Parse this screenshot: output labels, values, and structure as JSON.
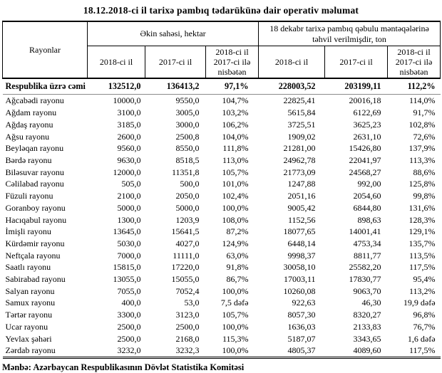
{
  "title": "18.12.2018-ci il tarixə pambıq tədarükünə dair operativ məlumat",
  "footer": "Mənbə: Azərbaycan Respublikasının Dövlət Statistika Komitəsi",
  "table": {
    "headers": {
      "rayonlar": "Rayonlar",
      "group_area": "Əkin sahəsi, hektar",
      "group_delivered": "18 dekabr tarixə pambıq qəbulu məntəqələrinə təhvil verilmişdir, ton",
      "subcols": [
        "2018-ci il",
        "2017-ci il",
        "2018-ci il 2017-ci ilə nisbətən"
      ]
    },
    "total": {
      "label": "Respublika üzrə cəmi",
      "values": [
        "132512,0",
        "136413,2",
        "97,1%",
        "228003,52",
        "203199,11",
        "112,2%"
      ]
    },
    "rows": [
      [
        "Ağcabədi rayonu",
        "10000,0",
        "9550,0",
        "104,7%",
        "22825,41",
        "20016,18",
        "114,0%"
      ],
      [
        "Ağdam rayonu",
        "3100,0",
        "3005,0",
        "103,2%",
        "5615,84",
        "6122,69",
        "91,7%"
      ],
      [
        "Ağdaş rayonu",
        "3185,0",
        "3000,0",
        "106,2%",
        "3725,51",
        "3625,23",
        "102,8%"
      ],
      [
        "Ağsu rayonu",
        "2600,0",
        "2500,8",
        "104,0%",
        "1909,02",
        "2631,10",
        "72,6%"
      ],
      [
        "Beyləqan rayonu",
        "9560,0",
        "8550,0",
        "111,8%",
        "21281,00",
        "15426,80",
        "137,9%"
      ],
      [
        "Bərdə rayonu",
        "9630,0",
        "8518,5",
        "113,0%",
        "24962,78",
        "22041,97",
        "113,3%"
      ],
      [
        "Biləsuvar rayonu",
        "12000,0",
        "11351,8",
        "105,7%",
        "21773,09",
        "24568,27",
        "88,6%"
      ],
      [
        "Cəlilabad rayonu",
        "505,0",
        "500,0",
        "101,0%",
        "1247,88",
        "992,00",
        "125,8%"
      ],
      [
        "Füzuli rayonu",
        "2100,0",
        "2050,0",
        "102,4%",
        "2051,16",
        "2054,60",
        "99,8%"
      ],
      [
        "Goranboy rayonu",
        "5000,0",
        "5000,0",
        "100,0%",
        "9005,42",
        "6844,80",
        "131,6%"
      ],
      [
        "Hacıqabul rayonu",
        "1300,0",
        "1203,9",
        "108,0%",
        "1152,56",
        "898,63",
        "128,3%"
      ],
      [
        "İmişli rayonu",
        "13645,0",
        "15641,5",
        "87,2%",
        "18077,65",
        "14001,41",
        "129,1%"
      ],
      [
        "Kürdəmir rayonu",
        "5030,0",
        "4027,0",
        "124,9%",
        "6448,14",
        "4753,34",
        "135,7%"
      ],
      [
        "Neftçala rayonu",
        "7000,0",
        "11111,0",
        "63,0%",
        "9998,37",
        "8811,77",
        "113,5%"
      ],
      [
        "Saatlı rayonu",
        "15815,0",
        "17220,0",
        "91,8%",
        "30058,10",
        "25582,20",
        "117,5%"
      ],
      [
        "Sabirabad rayonu",
        "13055,0",
        "15055,0",
        "86,7%",
        "17003,11",
        "17830,77",
        "95,4%"
      ],
      [
        "Salyan rayonu",
        "7055,0",
        "7052,4",
        "100,0%",
        "10260,08",
        "9063,70",
        "113,2%"
      ],
      [
        "Samux rayonu",
        "400,0",
        "53,0",
        "7,5 dəfə",
        "922,63",
        "46,30",
        "19,9 dəfə"
      ],
      [
        "Tərtər rayonu",
        "3300,0",
        "3123,0",
        "105,7%",
        "8057,30",
        "8320,27",
        "96,8%"
      ],
      [
        "Ucar rayonu",
        "2500,0",
        "2500,0",
        "100,0%",
        "1636,03",
        "2133,83",
        "76,7%"
      ],
      [
        "Yevlax şəhəri",
        "2500,0",
        "2168,0",
        "115,3%",
        "5187,07",
        "3343,65",
        "1,6 dəfə"
      ],
      [
        "Zərdab rayonu",
        "3232,0",
        "3232,3",
        "100,0%",
        "4805,37",
        "4089,60",
        "117,5%"
      ]
    ]
  }
}
